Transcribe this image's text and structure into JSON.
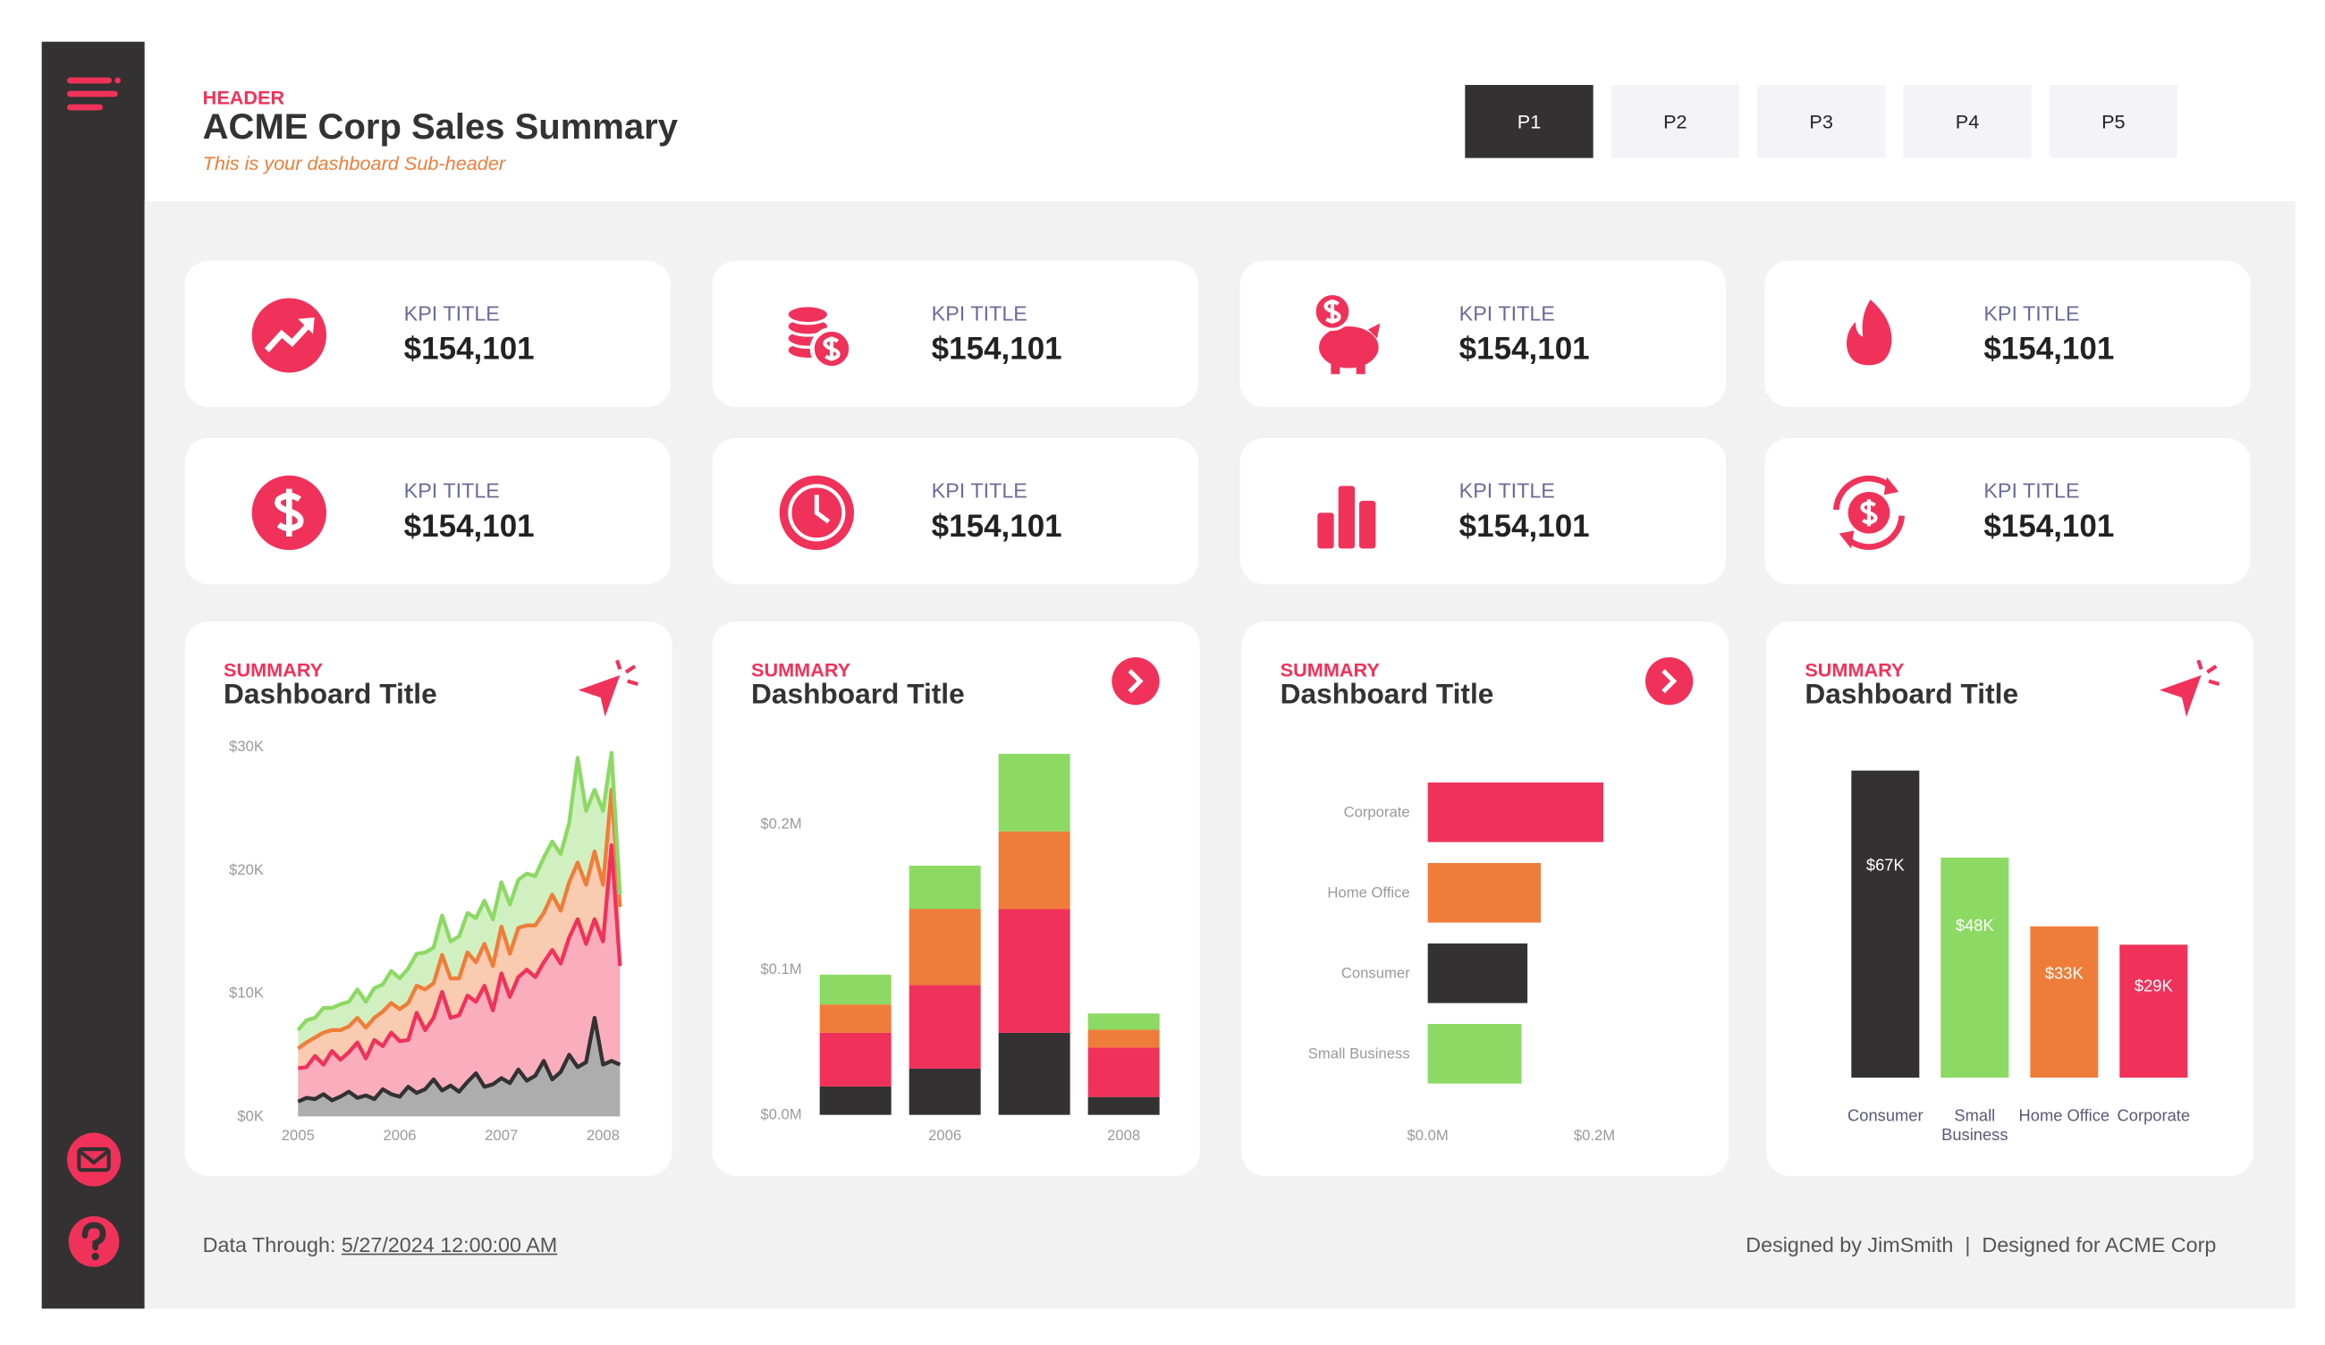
{
  "header": {
    "eyebrow": "HEADER",
    "title": "ACME Corp Sales Summary",
    "subtitle": "This is your dashboard Sub-header"
  },
  "pages": [
    "P1",
    "P2",
    "P3",
    "P4",
    "P5"
  ],
  "active_page_index": 0,
  "kpis": [
    {
      "title": "KPI TITLE",
      "value": "$154,101"
    },
    {
      "title": "KPI TITLE",
      "value": "$154,101"
    },
    {
      "title": "KPI TITLE",
      "value": "$154,101"
    },
    {
      "title": "KPI TITLE",
      "value": "$154,101"
    },
    {
      "title": "KPI TITLE",
      "value": "$154,101"
    },
    {
      "title": "KPI TITLE",
      "value": "$154,101"
    },
    {
      "title": "KPI TITLE",
      "value": "$154,101"
    },
    {
      "title": "KPI TITLE",
      "value": "$154,101"
    }
  ],
  "panels": [
    {
      "eyebrow": "SUMMARY",
      "title": "Dashboard Title"
    },
    {
      "eyebrow": "SUMMARY",
      "title": "Dashboard Title"
    },
    {
      "eyebrow": "SUMMARY",
      "title": "Dashboard Title"
    },
    {
      "eyebrow": "SUMMARY",
      "title": "Dashboard Title"
    }
  ],
  "chart_data": [
    {
      "type": "area",
      "stacked": true,
      "categories": [
        "2005",
        null,
        null,
        null,
        null,
        null,
        null,
        null,
        null,
        null,
        null,
        null,
        "2006",
        null,
        null,
        null,
        null,
        null,
        null,
        null,
        null,
        null,
        null,
        null,
        "2007",
        null,
        null,
        null,
        null,
        null,
        null,
        null,
        null,
        null,
        null,
        null,
        "2008",
        null,
        null
      ],
      "series": [
        {
          "color": "#333132",
          "values": [
            1200,
            1500,
            1400,
            1800,
            1300,
            1600,
            2000,
            1500,
            1700,
            1400,
            2200,
            1800,
            1600,
            2400,
            1900,
            2200,
            3000,
            2100,
            2500,
            2000,
            2800,
            3500,
            2400,
            2600,
            3100,
            2700,
            3800,
            2900,
            3300,
            4500,
            3000,
            3600,
            5000,
            4000,
            4400,
            8000,
            4200,
            4500,
            4200
          ]
        },
        {
          "color": "#f0325a",
          "values": [
            2700,
            2500,
            3500,
            2400,
            4000,
            3000,
            3200,
            4500,
            3000,
            4800,
            3500,
            5000,
            4500,
            3800,
            6500,
            4800,
            5000,
            8000,
            5500,
            6200,
            7000,
            5800,
            8200,
            6000,
            8500,
            7000,
            7500,
            9000,
            8000,
            8000,
            10500,
            8800,
            9500,
            12000,
            9600,
            8000,
            10000,
            17500,
            8000
          ]
        },
        {
          "color": "#ef7d3a",
          "values": [
            1600,
            2000,
            1500,
            2600,
            1700,
            2400,
            2100,
            2000,
            2500,
            1800,
            2800,
            2400,
            2600,
            3000,
            2200,
            3300,
            2800,
            3000,
            3200,
            3000,
            3500,
            3200,
            3400,
            3600,
            3800,
            3500,
            4000,
            3600,
            4200,
            4000,
            4500,
            4300,
            4500,
            4600,
            4800,
            5500,
            4600,
            4500,
            4800
          ]
        },
        {
          "color": "#8cd964",
          "values": [
            1500,
            1800,
            1600,
            2000,
            1800,
            2100,
            2000,
            2300,
            2100,
            2400,
            2200,
            2600,
            2500,
            2800,
            2600,
            3000,
            2900,
            3200,
            3000,
            3400,
            3200,
            3600,
            3500,
            3800,
            3600,
            4000,
            3900,
            4200,
            4000,
            4500,
            4300,
            4600,
            4800,
            8500,
            6000,
            5000,
            6000,
            3000,
            1000
          ]
        }
      ],
      "ylim": [
        0,
        30000
      ],
      "yticks": [
        {
          "value": 0,
          "label": "$0K"
        },
        {
          "value": 10000,
          "label": "$10K"
        },
        {
          "value": 20000,
          "label": "$20K"
        },
        {
          "value": 30000,
          "label": "$30K"
        }
      ]
    },
    {
      "type": "bar",
      "stacked": true,
      "categories": [
        null,
        "2006",
        null,
        "2008"
      ],
      "series": [
        {
          "color": "#333132",
          "values": [
            19500,
            31800,
            56400,
            12300
          ]
        },
        {
          "color": "#f0325a",
          "values": [
            36900,
            57400,
            85100,
            33900
          ]
        },
        {
          "color": "#ef7d3a",
          "values": [
            19500,
            52300,
            53400,
            12300
          ]
        },
        {
          "color": "#8cd964",
          "values": [
            20500,
            29800,
            53300,
            11200
          ]
        }
      ],
      "ylim": [
        0,
        250000
      ],
      "yticks": [
        {
          "value": 0,
          "label": "$0.0M"
        },
        {
          "value": 100000,
          "label": "$0.1M"
        },
        {
          "value": 200000,
          "label": "$0.2M"
        }
      ]
    },
    {
      "type": "bar",
      "horizontal": true,
      "categories": [
        "Corporate",
        "Home Office",
        "Consumer",
        "Small Business"
      ],
      "values": [
        210700,
        135700,
        119600,
        112500
      ],
      "colors": [
        "#f0325a",
        "#ef7d3a",
        "#333132",
        "#8cd964"
      ],
      "xlim": [
        0,
        220000
      ],
      "xticks": [
        {
          "value": 0,
          "label": "$0.0M"
        },
        {
          "value": 200000,
          "label": "$0.2M"
        }
      ]
    },
    {
      "type": "bar",
      "categories": [
        "Consumer",
        "Small Business",
        "Home Office",
        "Corporate"
      ],
      "values": [
        67000,
        48000,
        33000,
        29000
      ],
      "value_labels": [
        "$67K",
        "$48K",
        "$33K",
        "$29K"
      ],
      "colors": [
        "#333132",
        "#8cd964",
        "#ef7d3a",
        "#f0325a"
      ]
    }
  ],
  "footer": {
    "data_through_label": "Data Through: ",
    "data_through_value": "5/27/2024 12:00:00 AM",
    "credit": "Designed by JimSmith  |  Designed for ACME Corp"
  }
}
